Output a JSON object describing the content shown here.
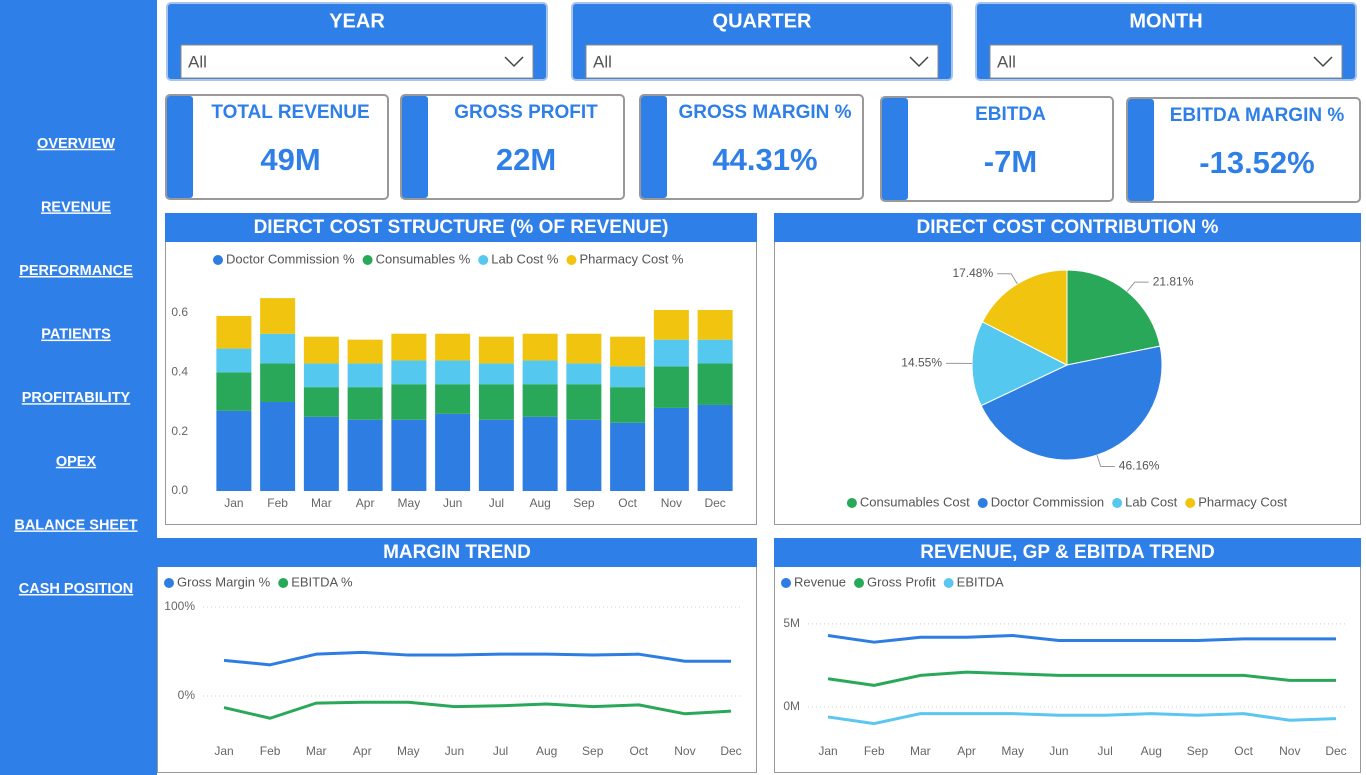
{
  "nav": [
    "OVERVIEW",
    "REVENUE",
    "PERFORMANCE",
    "PATIENTS",
    "PROFITABILITY",
    "OPEX",
    "BALANCE SHEET",
    "CASH POSITION"
  ],
  "filters": [
    {
      "label": "YEAR",
      "value": "All"
    },
    {
      "label": "QUARTER",
      "value": "All"
    },
    {
      "label": "MONTH",
      "value": "All"
    }
  ],
  "kpis": [
    {
      "label": "TOTAL REVENUE",
      "value": "49M"
    },
    {
      "label": "GROSS PROFIT",
      "value": "22M"
    },
    {
      "label": "GROSS MARGIN %",
      "value": "44.31%"
    },
    {
      "label": "EBITDA",
      "value": "-7M"
    },
    {
      "label": "EBITDA MARGIN %",
      "value": "-13.52%"
    }
  ],
  "chart_data": [
    {
      "type": "bar",
      "stacked": true,
      "title": "DIERCT COST STRUCTURE (% OF REVENUE)",
      "legend": "top",
      "grid": false,
      "categories": [
        "Jan",
        "Feb",
        "Mar",
        "Apr",
        "May",
        "Jun",
        "Jul",
        "Aug",
        "Sep",
        "Oct",
        "Nov",
        "Dec"
      ],
      "series": [
        {
          "name": "Doctor Commission %",
          "color": "#2e7de3",
          "values": [
            0.27,
            0.3,
            0.25,
            0.24,
            0.24,
            0.26,
            0.24,
            0.25,
            0.24,
            0.23,
            0.28,
            0.29
          ]
        },
        {
          "name": "Consumables %",
          "color": "#2aa85a",
          "values": [
            0.13,
            0.13,
            0.1,
            0.11,
            0.12,
            0.1,
            0.12,
            0.11,
            0.12,
            0.12,
            0.14,
            0.14
          ]
        },
        {
          "name": "Lab Cost %",
          "color": "#55c8f0",
          "values": [
            0.08,
            0.1,
            0.08,
            0.08,
            0.08,
            0.08,
            0.07,
            0.08,
            0.07,
            0.07,
            0.09,
            0.08
          ]
        },
        {
          "name": "Pharmacy Cost %",
          "color": "#f1c40f",
          "values": [
            0.11,
            0.12,
            0.09,
            0.08,
            0.09,
            0.09,
            0.09,
            0.09,
            0.1,
            0.1,
            0.1,
            0.1
          ]
        }
      ],
      "ylim": [
        0,
        0.7
      ],
      "yticks": [
        {
          "value": 0,
          "label": "0.0"
        },
        0.2,
        0.4,
        0.6
      ]
    },
    {
      "type": "pie",
      "title": "DIRECT COST CONTRIBUTION %",
      "legend": "bottom",
      "categories": [
        "Consumables Cost",
        "Doctor Commission",
        "Lab Cost",
        "Pharmacy Cost"
      ],
      "colors": [
        "#2aa85a",
        "#2e7de3",
        "#55c8f0",
        "#f1c40f"
      ],
      "values": [
        21.81,
        46.16,
        14.55,
        17.48
      ],
      "value_labels": [
        "21.81%",
        "46.16%",
        "14.55%",
        "17.48%"
      ]
    },
    {
      "type": "line",
      "title": "MARGIN TREND",
      "legend": "top",
      "grid": true,
      "categories": [
        "Jan",
        "Feb",
        "Mar",
        "Apr",
        "May",
        "Jun",
        "Jul",
        "Aug",
        "Sep",
        "Oct",
        "Nov",
        "Dec"
      ],
      "series": [
        {
          "name": "Gross Margin %",
          "color": "#2e7de3",
          "values": [
            40,
            35,
            47,
            49,
            46,
            46,
            47,
            47,
            46,
            47,
            39,
            39
          ]
        },
        {
          "name": "EBITDA %",
          "color": "#2aa85a",
          "values": [
            -13,
            -25,
            -8,
            -7,
            -7,
            -12,
            -11,
            -9,
            -12,
            -10,
            -20,
            -17
          ]
        }
      ],
      "ylim": [
        -50,
        100
      ],
      "yticks": [
        {
          "value": 0,
          "label": "0%"
        },
        {
          "value": 100,
          "label": "100%"
        }
      ]
    },
    {
      "type": "line",
      "title": "REVENUE, GP & EBITDA TREND",
      "legend": "top",
      "grid": true,
      "categories": [
        "Jan",
        "Feb",
        "Mar",
        "Apr",
        "May",
        "Jun",
        "Jul",
        "Aug",
        "Sep",
        "Oct",
        "Nov",
        "Dec"
      ],
      "series": [
        {
          "name": "Revenue",
          "color": "#2e7de3",
          "values": [
            4.3,
            3.9,
            4.2,
            4.2,
            4.3,
            4.0,
            4.0,
            4.0,
            4.0,
            4.1,
            4.1,
            4.1
          ]
        },
        {
          "name": "Gross Profit",
          "color": "#2aa85a",
          "values": [
            1.7,
            1.3,
            1.9,
            2.1,
            2.0,
            1.9,
            1.9,
            1.9,
            1.9,
            1.9,
            1.6,
            1.6
          ]
        },
        {
          "name": "EBITDA",
          "color": "#5bc6ef",
          "values": [
            -0.6,
            -1.0,
            -0.4,
            -0.4,
            -0.4,
            -0.5,
            -0.5,
            -0.4,
            -0.5,
            -0.4,
            -0.8,
            -0.7
          ]
        }
      ],
      "ylim": [
        -2,
        6.5
      ],
      "yticks": [
        {
          "value": 0,
          "label": "0M"
        },
        {
          "value": 5,
          "label": "5M"
        }
      ]
    }
  ]
}
